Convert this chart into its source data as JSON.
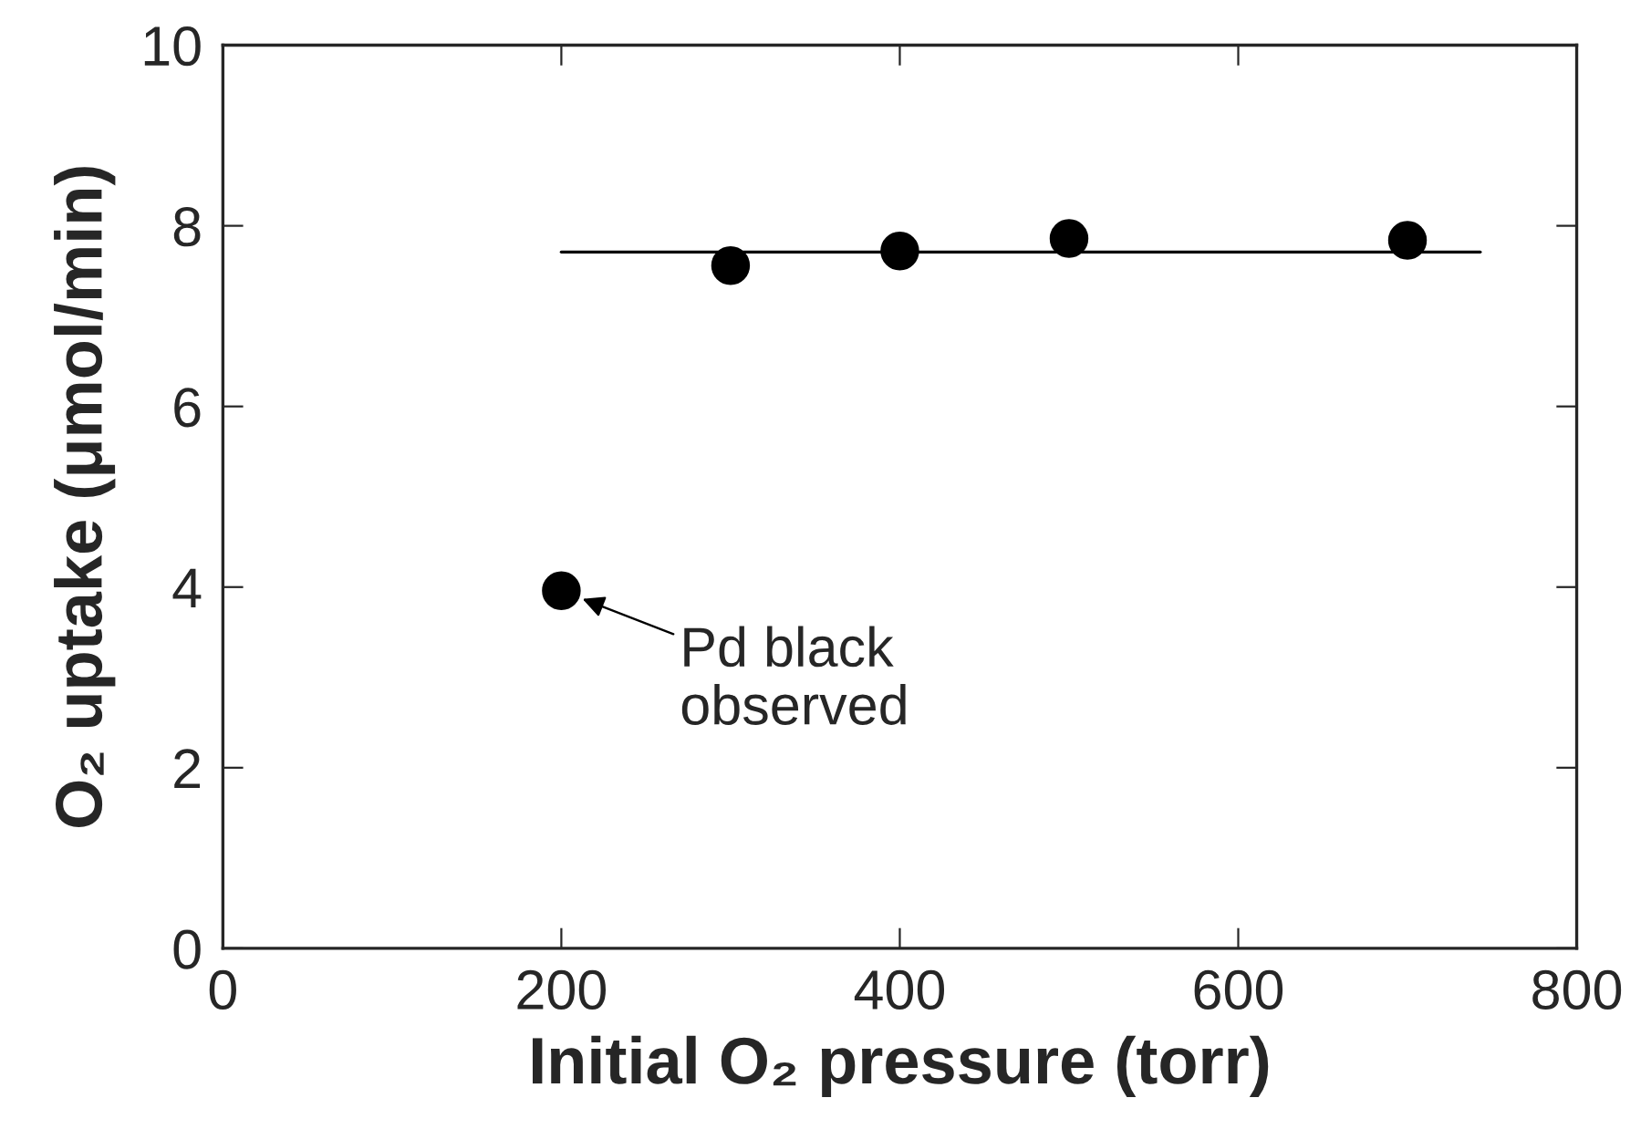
{
  "chart_data": {
    "type": "scatter",
    "xlabel": "Initial O₂ pressure (torr)",
    "ylabel": "O₂ uptake (μmol/min)",
    "xlim": [
      0,
      800
    ],
    "xticks": [
      0,
      200,
      400,
      600,
      800
    ],
    "ylim": [
      0,
      10
    ],
    "yticks": [
      0,
      2,
      4,
      6,
      8,
      10
    ],
    "grid": false,
    "series": [
      {
        "marker": "circle",
        "color": "#000000",
        "x": [
          200,
          300,
          400,
          500,
          700
        ],
        "values": [
          3.96,
          7.56,
          7.72,
          7.86,
          7.84
        ]
      },
      {
        "type": "line",
        "color": "#000000",
        "x": [
          200,
          743
        ],
        "values": [
          7.71,
          7.71
        ],
        "line_style": "solid",
        "marker": "none"
      }
    ],
    "annotations": [
      {
        "text": "Pd black\nobserved",
        "x": 200,
        "y": 3.96
      }
    ]
  }
}
